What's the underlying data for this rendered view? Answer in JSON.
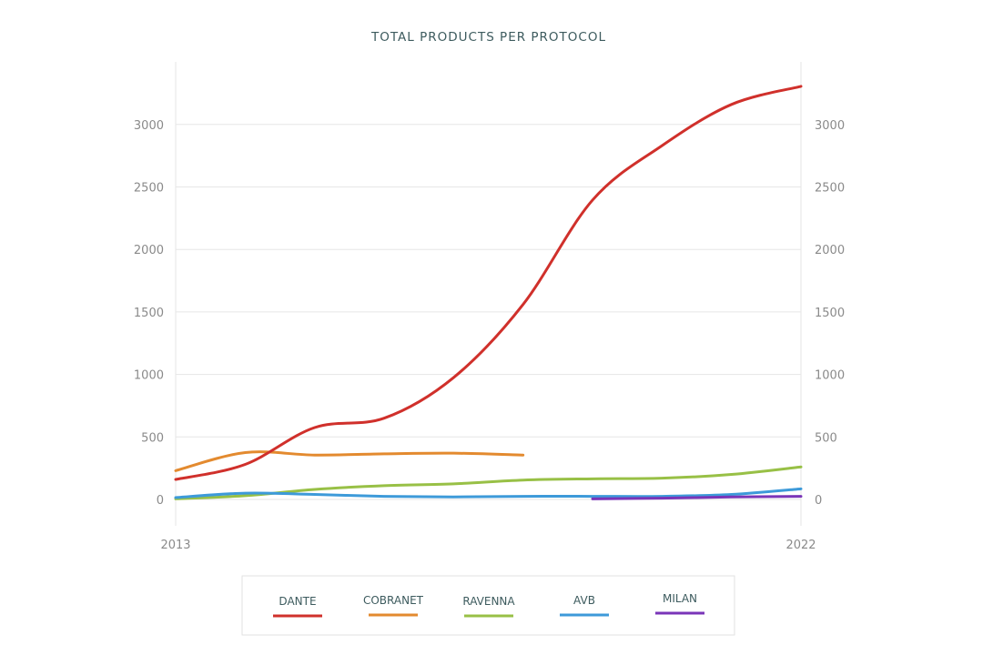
{
  "chart_data": {
    "type": "line",
    "title": "TOTAL PRODUCTS PER PROTOCOL",
    "xlabel": "",
    "ylabel": "",
    "x_tick_labels": [
      "2013",
      "2022"
    ],
    "xlim": [
      2013,
      2022
    ],
    "ylim": [
      0,
      3300
    ],
    "y_ticks": [
      0,
      500,
      1000,
      1500,
      2000,
      2500,
      3000
    ],
    "dual_y_axis": true,
    "grid": true,
    "legend_position": "bottom",
    "series": [
      {
        "name": "DANTE",
        "color": "#d0302b",
        "x": [
          2013,
          2014,
          2015,
          2016,
          2017,
          2018,
          2019,
          2020,
          2021,
          2022
        ],
        "values": [
          160,
          280,
          575,
          650,
          975,
          1560,
          2395,
          2830,
          3160,
          3305
        ]
      },
      {
        "name": "COBRANET",
        "color": "#e38a2f",
        "x": [
          2013,
          2014,
          2015,
          2016,
          2017,
          2018
        ],
        "values": [
          230,
          375,
          355,
          365,
          370,
          355
        ]
      },
      {
        "name": "RAVENNA",
        "color": "#98c046",
        "x": [
          2013,
          2014,
          2015,
          2016,
          2017,
          2018,
          2019,
          2020,
          2021,
          2022
        ],
        "values": [
          5,
          30,
          80,
          110,
          125,
          155,
          165,
          170,
          200,
          260
        ]
      },
      {
        "name": "AVB",
        "color": "#3d9ad9",
        "x": [
          2013,
          2014,
          2015,
          2016,
          2017,
          2018,
          2019,
          2020,
          2021,
          2022
        ],
        "values": [
          15,
          50,
          40,
          25,
          20,
          25,
          25,
          25,
          40,
          85
        ]
      },
      {
        "name": "MILAN",
        "color": "#7a35b8",
        "x": [
          2019,
          2020,
          2021,
          2022
        ],
        "values": [
          5,
          10,
          20,
          25
        ]
      }
    ]
  }
}
